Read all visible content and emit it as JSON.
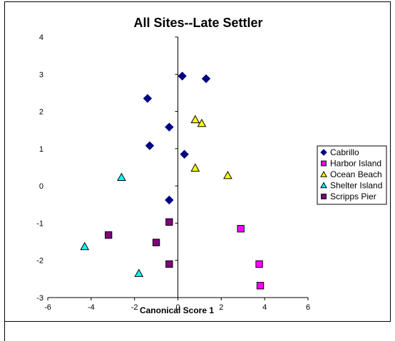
{
  "chart_data": {
    "type": "scatter",
    "title": "All Sites--Late Settler",
    "xlabel": "Canonical Score 1",
    "ylabel": "",
    "xlim": [
      -6,
      6
    ],
    "ylim": [
      -3,
      4
    ],
    "xticks": [
      -6,
      -4,
      -2,
      0,
      2,
      4,
      6
    ],
    "yticks": [
      -3,
      -2,
      -1,
      0,
      1,
      2,
      3,
      4
    ],
    "grid": false,
    "legend_position": "right",
    "series": [
      {
        "name": "Cabrillo",
        "marker": "diamond",
        "color": "#000080",
        "points": [
          [
            0.2,
            2.95
          ],
          [
            1.3,
            2.88
          ],
          [
            -1.4,
            2.35
          ],
          [
            -0.4,
            1.58
          ],
          [
            -1.3,
            1.08
          ],
          [
            0.3,
            0.85
          ],
          [
            -0.4,
            -0.38
          ]
        ]
      },
      {
        "name": "Harbor Island",
        "marker": "square",
        "color": "#FF00FF",
        "points": [
          [
            2.9,
            -1.15
          ],
          [
            3.75,
            -2.1
          ],
          [
            3.8,
            -2.68
          ]
        ]
      },
      {
        "name": "Ocean Beach",
        "marker": "triangle",
        "color": "#FFFF00",
        "points": [
          [
            0.8,
            1.78
          ],
          [
            1.1,
            1.68
          ],
          [
            0.8,
            0.48
          ],
          [
            2.3,
            0.28
          ]
        ]
      },
      {
        "name": "Shelter Island",
        "marker": "triangle",
        "color": "#00FFFF",
        "points": [
          [
            -2.6,
            0.23
          ],
          [
            -4.3,
            -1.63
          ],
          [
            -1.8,
            -2.35
          ]
        ]
      },
      {
        "name": "Scripps Pier",
        "marker": "square",
        "color": "#800080",
        "points": [
          [
            -0.4,
            -0.97
          ],
          [
            -3.2,
            -1.32
          ],
          [
            -1.0,
            -1.52
          ],
          [
            -0.4,
            -2.1
          ]
        ]
      }
    ]
  }
}
